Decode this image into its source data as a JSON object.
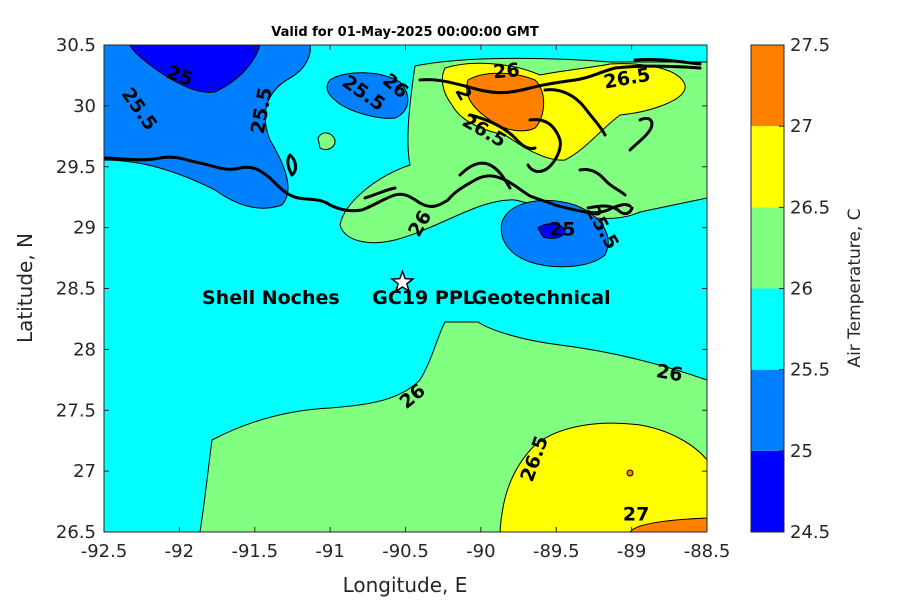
{
  "title": "Valid for 01-May-2025 00:00:00 GMT",
  "xlabel": "Longitude, E",
  "ylabel": "Latitude, N",
  "xlim": [
    -92.5,
    -88.5
  ],
  "ylim": [
    26.5,
    30.5
  ],
  "xticks": [
    -92.5,
    -92,
    -91.5,
    -91,
    -90.5,
    -90,
    -89.5,
    -89,
    -88.5
  ],
  "yticks": [
    26.5,
    27,
    27.5,
    28,
    28.5,
    29,
    29.5,
    30,
    30.5
  ],
  "xtick_labels": [
    "-92.5",
    "-92",
    "-91.5",
    "-91",
    "-90.5",
    "-90",
    "-89.5",
    "-89",
    "-88.5"
  ],
  "ytick_labels": [
    "26.5",
    "27",
    "27.5",
    "28",
    "28.5",
    "29",
    "29.5",
    "30",
    "30.5"
  ],
  "colorbar": {
    "label": "Air Temperature, C",
    "levels": [
      24.5,
      25,
      25.5,
      26,
      26.5,
      27,
      27.5
    ],
    "tick_labels": [
      "24.5",
      "25",
      "25.5",
      "26",
      "26.5",
      "27",
      "27.5"
    ],
    "colors": [
      "#0000ff",
      "#0080ff",
      "#00ffff",
      "#80ff80",
      "#ffff00",
      "#ff8000",
      "#ff0000"
    ]
  },
  "site": {
    "lon": -90.52,
    "lat": 28.55,
    "marker": "star-icon",
    "label_parts": [
      "Shell Noches",
      "GC19 PPL",
      "Geotechnical"
    ],
    "label_lat": 28.43,
    "label_lons": [
      -91.85,
      -90.38,
      -89.6
    ]
  },
  "contour_labels": [
    {
      "text": "25",
      "lon": -92.0,
      "lat": 30.24,
      "angle": 20
    },
    {
      "text": "25.5",
      "lon": -92.27,
      "lat": 29.97,
      "angle": 55
    },
    {
      "text": "25.5",
      "lon": -91.45,
      "lat": 29.96,
      "angle": -80
    },
    {
      "text": "25.5",
      "lon": -90.78,
      "lat": 30.1,
      "angle": 35
    },
    {
      "text": "26",
      "lon": -90.57,
      "lat": 30.16,
      "angle": 40
    },
    {
      "text": "26",
      "lon": -89.83,
      "lat": 30.28,
      "angle": -5
    },
    {
      "text": "2",
      "lon": -90.12,
      "lat": 30.1,
      "angle": 60
    },
    {
      "text": "26.5",
      "lon": -89.98,
      "lat": 29.79,
      "angle": 30
    },
    {
      "text": "26.5",
      "lon": -89.03,
      "lat": 30.22,
      "angle": -10
    },
    {
      "text": "25",
      "lon": -89.46,
      "lat": 28.98,
      "angle": 0
    },
    {
      "text": "25.5",
      "lon": -89.2,
      "lat": 29.0,
      "angle": 60
    },
    {
      "text": "26",
      "lon": -90.4,
      "lat": 29.03,
      "angle": -60
    },
    {
      "text": "26",
      "lon": -88.75,
      "lat": 27.8,
      "angle": 10
    },
    {
      "text": "26",
      "lon": -90.45,
      "lat": 27.61,
      "angle": -40
    },
    {
      "text": "26.5",
      "lon": -89.64,
      "lat": 27.1,
      "angle": -70
    },
    {
      "text": "27",
      "lon": -88.97,
      "lat": 26.64,
      "angle": 0
    }
  ]
}
